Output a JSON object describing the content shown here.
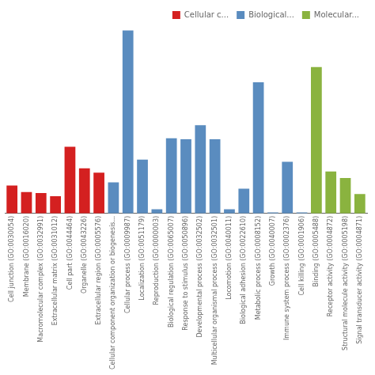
{
  "chart_data": {
    "type": "bar",
    "categories": [
      "Cell junction (GO:0030054)",
      "Membrane (GO:0016020)",
      "Macromolecular complex (GO:0032991)",
      "Extracellular matrix (GO:0031012)",
      "Cell part (GO:0044464)",
      "Organelle (GO:0043226)",
      "Extracellular region (GO:0005576)",
      "Cellular component organization or biogenesis...",
      "Cellular process (GO:0009987)",
      "Localization (GO:0051179)",
      "Reproduction (GO:0000003)",
      "Biological regulation (GO:0065007)",
      "Response to stimulus (GO:0050896)",
      "Developmental process (GO:0032502)",
      "Multicellular organismal process (GO:0032501)",
      "Locomotion (GO:0040011)",
      "Biological adhesion (GO:0022610)",
      "Metabolic process (GO:0008152)",
      "Growth (GO:0040007)",
      "Immune system process (GO:0002376)",
      "Cell killing (GO:0001906)",
      "Binding (GO:0005488)",
      "Receptor activity (GO:0004872)",
      "Structural molecule activity (GO:0005198)",
      "Signal transducer activity (GO:0004871)"
    ],
    "series": [
      {
        "name": "Cellular c...",
        "color": "#d42020",
        "values": [
          130,
          100,
          95,
          80,
          310,
          210,
          190,
          null,
          null,
          null,
          null,
          null,
          null,
          null,
          null,
          null,
          null,
          null,
          null,
          null,
          null,
          null,
          null,
          null,
          null
        ]
      },
      {
        "name": "Biological...",
        "color": "#5a8cbf",
        "values": [
          null,
          null,
          null,
          null,
          null,
          null,
          null,
          145,
          850,
          250,
          20,
          350,
          345,
          410,
          345,
          20,
          115,
          610,
          5,
          240,
          5,
          null,
          null,
          null,
          null
        ]
      },
      {
        "name": "Molecular...",
        "color": "#8ab33f",
        "values": [
          null,
          null,
          null,
          null,
          null,
          null,
          null,
          null,
          null,
          null,
          null,
          null,
          null,
          null,
          null,
          null,
          null,
          null,
          null,
          null,
          null,
          680,
          195,
          165,
          90
        ]
      }
    ],
    "ylim": [
      0,
      867
    ],
    "grid": false,
    "legend": "upper right",
    "tick_labels": "x"
  }
}
